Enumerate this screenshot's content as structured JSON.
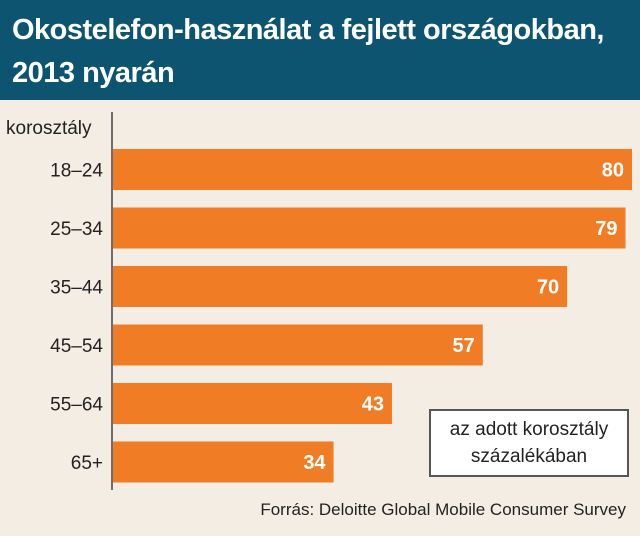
{
  "title": "Okostelefon-használat a fejlett országokban, 2013 nyarán",
  "note_line1": "az adott korosztály",
  "note_line2": "százalékában",
  "source": "Forrás: Deloitte Global Mobile Consumer Survey",
  "colors": {
    "header": "#0d5470",
    "bar": "#f07d25",
    "background": "#f4ede4"
  },
  "chart_data": {
    "type": "bar",
    "orientation": "horizontal",
    "title": "Okostelefon-használat a fejlett országokban, 2013 nyarán",
    "ylabel": "korosztály",
    "categories": [
      "18–24",
      "25–34",
      "35–44",
      "45–54",
      "55–64",
      "65+"
    ],
    "values": [
      80,
      79,
      70,
      57,
      43,
      34
    ],
    "xlim": [
      0,
      80
    ],
    "grid": false,
    "data_labels": true
  }
}
